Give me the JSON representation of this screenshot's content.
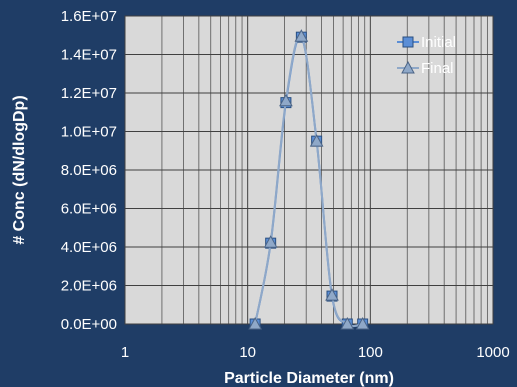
{
  "chart_data": {
    "type": "scatter",
    "x_scale": "log",
    "xlim": [
      1,
      1000
    ],
    "ylim": [
      0,
      16000000
    ],
    "xlabel": "Particle Diameter (nm)",
    "ylabel": "# Conc (dN/dlogDp)",
    "x_ticks": [
      "1",
      "10",
      "100",
      "1000"
    ],
    "x_tick_values": [
      1,
      10,
      100,
      1000
    ],
    "y_ticks": [
      "0.0E+00",
      "2.0E+06",
      "4.0E+06",
      "6.0E+06",
      "8.0E+06",
      "1.0E+07",
      "1.2E+07",
      "1.4E+07",
      "1.6E+07"
    ],
    "y_tick_values": [
      0,
      2000000,
      4000000,
      6000000,
      8000000,
      10000000,
      12000000,
      14000000,
      16000000
    ],
    "grid": true,
    "legend_position": "top-right",
    "series": [
      {
        "name": "Initial",
        "marker": "square",
        "color": "#5b8ed6",
        "x": [
          11.5,
          15.4,
          20.5,
          27.4,
          36.5,
          48.7,
          64.9,
          86.6
        ],
        "y": [
          0,
          4200000,
          11500000,
          14900000,
          9500000,
          1450000,
          0,
          0
        ]
      },
      {
        "name": "Final",
        "marker": "triangle",
        "color": "#8fa8c8",
        "x": [
          11.5,
          15.4,
          20.5,
          27.4,
          36.5,
          48.7,
          64.9,
          86.6
        ],
        "y": [
          0,
          4250000,
          11600000,
          14950000,
          9500000,
          1500000,
          0,
          0
        ]
      }
    ]
  }
}
